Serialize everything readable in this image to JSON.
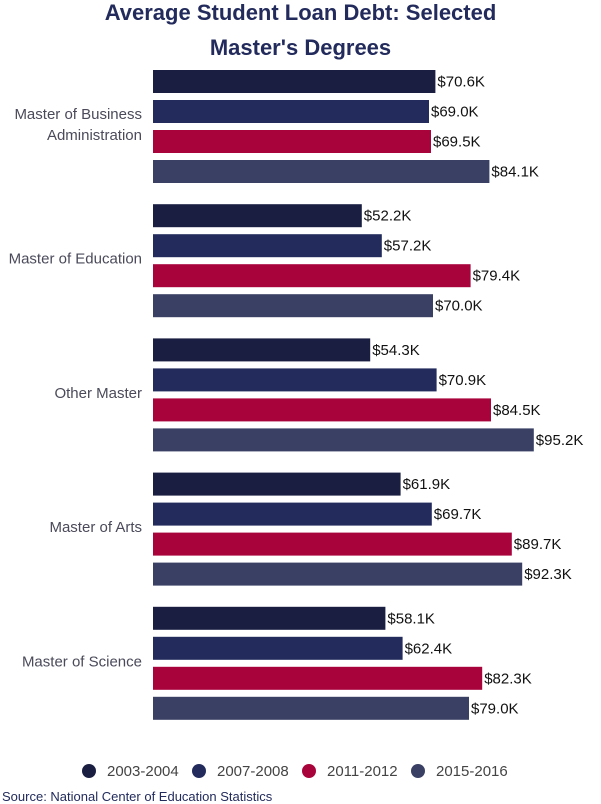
{
  "chart_data": {
    "type": "bar",
    "orientation": "horizontal",
    "title_line1": "Average Student Loan Debt: Selected",
    "title_line2": "Master's Degrees",
    "categories": [
      "Master of Business Administration",
      "Master of Education",
      "Other Master",
      "Master of Arts",
      "Master of Science"
    ],
    "category_lines": [
      [
        "Master of Business",
        "Administration"
      ],
      [
        "Master of Education"
      ],
      [
        "Other Master"
      ],
      [
        "Master of Arts"
      ],
      [
        "Master of Science"
      ]
    ],
    "series": [
      {
        "name": "2003-2004",
        "color": "#1a1f42",
        "values": [
          70.6,
          52.2,
          54.3,
          61.9,
          58.1
        ]
      },
      {
        "name": "2007-2008",
        "color": "#222b5c",
        "values": [
          69.0,
          57.2,
          70.9,
          69.7,
          62.4
        ]
      },
      {
        "name": "2011-2012",
        "color": "#a8033b",
        "values": [
          69.5,
          79.4,
          84.5,
          89.7,
          82.3
        ]
      },
      {
        "name": "2015-2016",
        "color": "#394063",
        "values": [
          84.1,
          70.0,
          95.2,
          92.3,
          79.0
        ]
      }
    ],
    "value_format": "${v}K",
    "xlim": [
      0,
      100
    ],
    "grid": false,
    "legend": "bottom",
    "source": "Source: National Center of Education Statistics"
  }
}
